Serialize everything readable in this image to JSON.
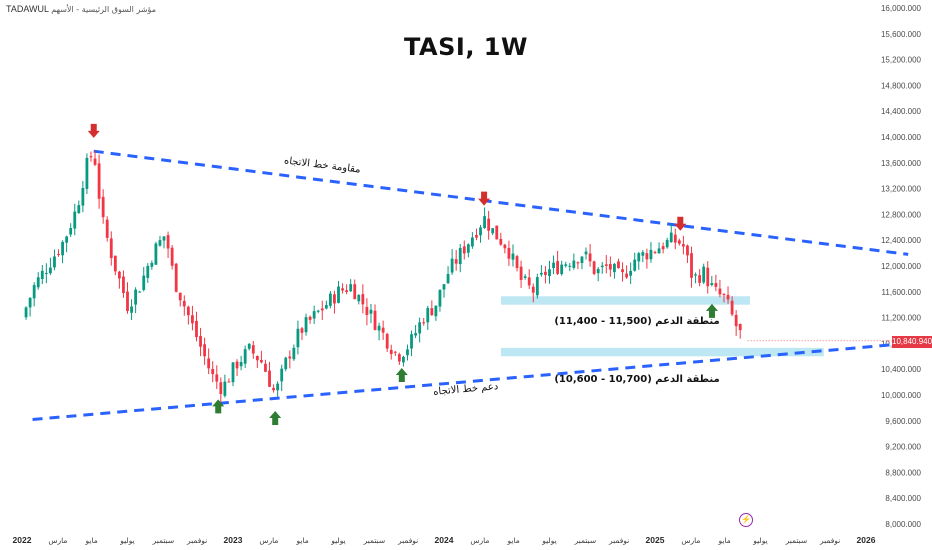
{
  "header": {
    "source_label": "TADAWUL",
    "source_subtitle": "مؤشر السوق الرئيسية - الأسهم",
    "title": "TASI, 1W"
  },
  "chart_data": {
    "type": "candlestick",
    "title": "TASI, 1W",
    "y_axis": {
      "min": 8000,
      "max": 16000,
      "position": "right",
      "ticks": [
        16000,
        15600,
        15200,
        14800,
        14400,
        14000,
        13600,
        13200,
        12800,
        12400,
        12000,
        11600,
        11200,
        10800,
        10400,
        10000,
        9600,
        9200,
        8800,
        8400,
        8000
      ],
      "tick_labels": [
        "16,000.000",
        "15,600.000",
        "15,200.000",
        "14,800.000",
        "14,400.000",
        "14,000.000",
        "13,600.000",
        "13,200.000",
        "12,800.000",
        "12,400.000",
        "12,000.000",
        "11,600.000",
        "11,200.000",
        "10,800.000",
        "10,400.000",
        "10,000.000",
        "9,600.000",
        "9,200.000",
        "8,800.000",
        "8,400.000",
        "8,000.000"
      ]
    },
    "x_axis": {
      "min": "2022-01",
      "max": "2026-02",
      "labels": [
        {
          "t": 2022.0,
          "text": "2022",
          "year": true
        },
        {
          "t": 2022.17,
          "text": "مارس"
        },
        {
          "t": 2022.33,
          "text": "مايو"
        },
        {
          "t": 2022.5,
          "text": "يوليو"
        },
        {
          "t": 2022.67,
          "text": "سبتمبر"
        },
        {
          "t": 2022.83,
          "text": "نوفمبر"
        },
        {
          "t": 2023.0,
          "text": "2023",
          "year": true
        },
        {
          "t": 2023.17,
          "text": "مارس"
        },
        {
          "t": 2023.33,
          "text": "مايو"
        },
        {
          "t": 2023.5,
          "text": "يوليو"
        },
        {
          "t": 2023.67,
          "text": "سبتمبر"
        },
        {
          "t": 2023.83,
          "text": "نوفمبر"
        },
        {
          "t": 2024.0,
          "text": "2024",
          "year": true
        },
        {
          "t": 2024.17,
          "text": "مارس"
        },
        {
          "t": 2024.33,
          "text": "مايو"
        },
        {
          "t": 2024.5,
          "text": "يوليو"
        },
        {
          "t": 2024.67,
          "text": "سبتمبر"
        },
        {
          "t": 2024.83,
          "text": "نوفمبر"
        },
        {
          "t": 2025.0,
          "text": "2025",
          "year": true
        },
        {
          "t": 2025.17,
          "text": "مارس"
        },
        {
          "t": 2025.33,
          "text": "مايو"
        },
        {
          "t": 2025.5,
          "text": "يوليو"
        },
        {
          "t": 2025.67,
          "text": "سبتمبر"
        },
        {
          "t": 2025.83,
          "text": "نوفمبر"
        },
        {
          "t": 2026.0,
          "text": "2026",
          "year": true
        }
      ]
    },
    "price_path": [
      [
        2022.0,
        11200
      ],
      [
        2022.06,
        11700
      ],
      [
        2022.12,
        12000
      ],
      [
        2022.2,
        12400
      ],
      [
        2022.26,
        12900
      ],
      [
        2022.3,
        13500
      ],
      [
        2022.34,
        13800
      ],
      [
        2022.38,
        12700
      ],
      [
        2022.44,
        12000
      ],
      [
        2022.5,
        11400
      ],
      [
        2022.56,
        11700
      ],
      [
        2022.62,
        12200
      ],
      [
        2022.68,
        12500
      ],
      [
        2022.72,
        11800
      ],
      [
        2022.78,
        11300
      ],
      [
        2022.84,
        10800
      ],
      [
        2022.9,
        10300
      ],
      [
        2022.95,
        10100
      ],
      [
        2023.02,
        10500
      ],
      [
        2023.08,
        10700
      ],
      [
        2023.14,
        10500
      ],
      [
        2023.2,
        10000
      ],
      [
        2023.26,
        10600
      ],
      [
        2023.32,
        11000
      ],
      [
        2023.38,
        11200
      ],
      [
        2023.44,
        11400
      ],
      [
        2023.5,
        11600
      ],
      [
        2023.56,
        11700
      ],
      [
        2023.6,
        11500
      ],
      [
        2023.66,
        11200
      ],
      [
        2023.72,
        10900
      ],
      [
        2023.78,
        10600
      ],
      [
        2023.84,
        10800
      ],
      [
        2023.9,
        11200
      ],
      [
        2023.96,
        11400
      ],
      [
        2024.02,
        11900
      ],
      [
        2024.08,
        12200
      ],
      [
        2024.14,
        12500
      ],
      [
        2024.19,
        12750
      ],
      [
        2024.24,
        12500
      ],
      [
        2024.3,
        12300
      ],
      [
        2024.36,
        11800
      ],
      [
        2024.42,
        11600
      ],
      [
        2024.48,
        11900
      ],
      [
        2024.54,
        12000
      ],
      [
        2024.6,
        12100
      ],
      [
        2024.66,
        12200
      ],
      [
        2024.72,
        11900
      ],
      [
        2024.78,
        12000
      ],
      [
        2024.84,
        11800
      ],
      [
        2024.9,
        12100
      ],
      [
        2024.96,
        12200
      ],
      [
        2025.02,
        12300
      ],
      [
        2025.08,
        12400
      ],
      [
        2025.13,
        12350
      ],
      [
        2025.18,
        11800
      ],
      [
        2025.23,
        11900
      ],
      [
        2025.28,
        11600
      ],
      [
        2025.33,
        11500
      ],
      [
        2025.38,
        11100
      ],
      [
        2025.42,
        10841
      ]
    ],
    "markers": {
      "down_arrows": [
        2022.34,
        2024.19,
        2025.12
      ],
      "up_arrows": [
        2022.93,
        2023.2,
        2023.8,
        2025.27
      ]
    },
    "trendlines": [
      {
        "name": "مقاومة خط الاتجاه",
        "role": "resistance",
        "from": [
          2022.34,
          13780
        ],
        "to": [
          2026.2,
          12180
        ],
        "color": "#2962ff",
        "style": "dashed"
      },
      {
        "name": "دعم خط الاتجاه",
        "role": "support",
        "from": [
          2022.05,
          9620
        ],
        "to": [
          2026.2,
          10800
        ],
        "color": "#2962ff",
        "style": "dashed"
      }
    ],
    "zones": [
      {
        "label": "منطقة الدعم (11,500 - 11,400)",
        "from_t": 2024.27,
        "to_t": 2025.45,
        "low": 11400,
        "high": 11500,
        "color": "#bde7f3"
      },
      {
        "label": "منطقة الدعم (10,700 - 10,600)",
        "from_t": 2024.27,
        "to_t": 2025.8,
        "low": 10600,
        "high": 10700,
        "color": "#bde7f3"
      }
    ],
    "last_price": {
      "value": 10840.94,
      "label": "10,840.940",
      "color": "#e53946"
    },
    "colors": {
      "up": "#089981",
      "down": "#f23645",
      "trend": "#2962ff",
      "marker_down": "#d32f2f",
      "marker_up": "#2e7d32"
    }
  }
}
